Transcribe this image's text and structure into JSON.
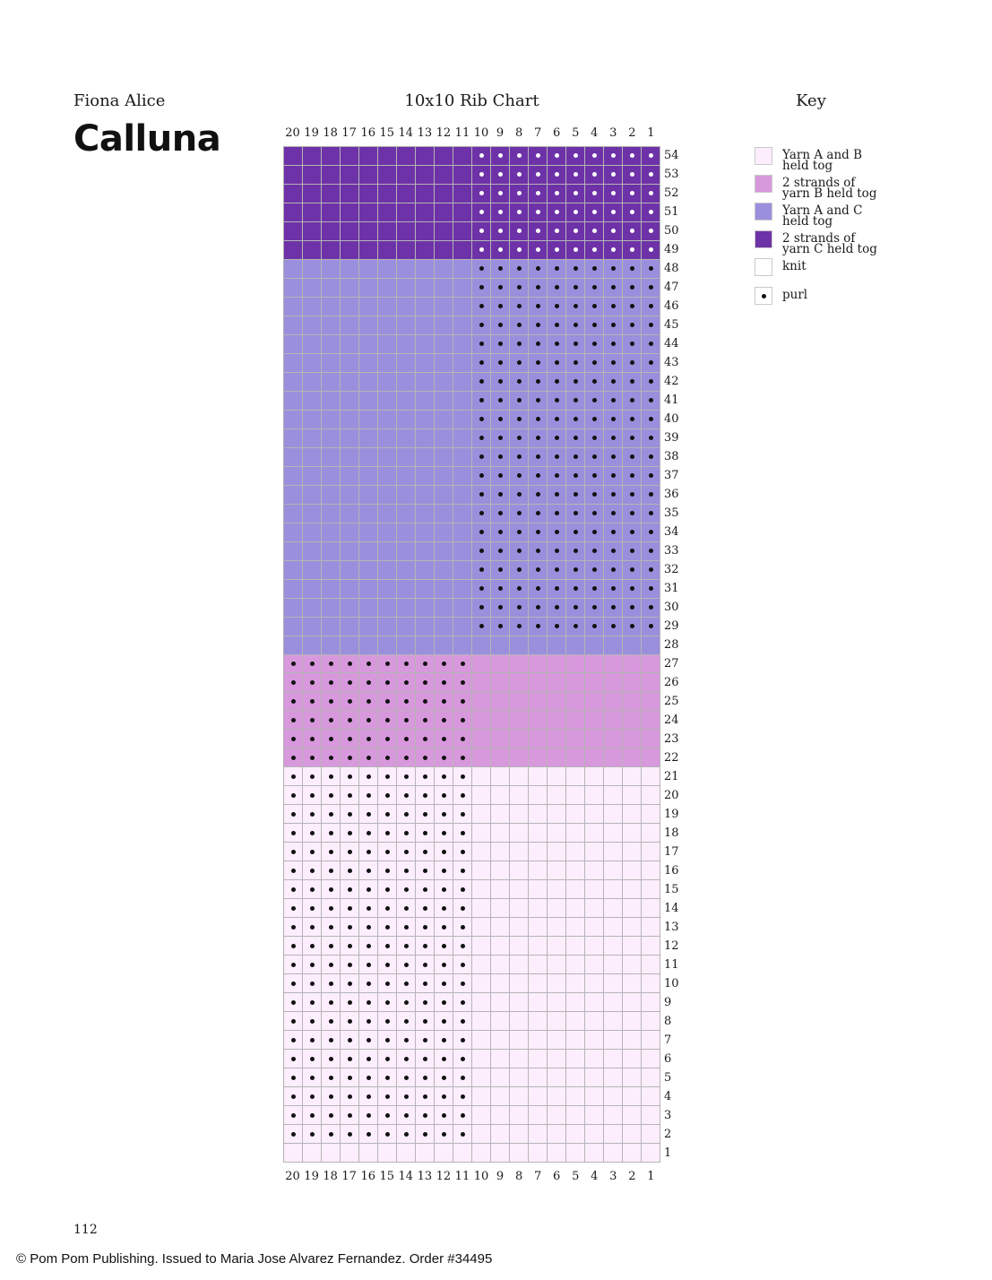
{
  "header": {
    "author": "Fiona Alice",
    "pattern_name": "Calluna",
    "chart_title": "10x10 Rib Chart",
    "key_title": "Key"
  },
  "chart": {
    "columns": [
      "20",
      "19",
      "18",
      "17",
      "16",
      "15",
      "14",
      "13",
      "12",
      "11",
      "10",
      "9",
      "8",
      "7",
      "6",
      "5",
      "4",
      "3",
      "2",
      "1"
    ],
    "rows": [
      "54",
      "53",
      "52",
      "51",
      "50",
      "49",
      "48",
      "47",
      "46",
      "45",
      "44",
      "43",
      "42",
      "41",
      "40",
      "39",
      "38",
      "37",
      "36",
      "35",
      "34",
      "33",
      "32",
      "31",
      "30",
      "29",
      "28",
      "27",
      "26",
      "25",
      "24",
      "23",
      "22",
      "21",
      "20",
      "19",
      "18",
      "17",
      "16",
      "15",
      "14",
      "13",
      "12",
      "11",
      "10",
      "9",
      "8",
      "7",
      "6",
      "5",
      "4",
      "3",
      "2",
      "1"
    ],
    "sections": [
      {
        "rows": "1-21",
        "color_key": "yarn_ab",
        "purl_stitches": "20-11",
        "purl_rows": "2-21"
      },
      {
        "rows": "22-27",
        "color_key": "yarn_bb",
        "purl_stitches": "20-11",
        "purl_rows": "22-27"
      },
      {
        "rows": "28-48",
        "color_key": "yarn_ac",
        "purl_stitches": "10-1",
        "purl_rows": "29-48"
      },
      {
        "rows": "49-54",
        "color_key": "yarn_cc",
        "purl_stitches": "10-1",
        "purl_rows": "49-54"
      }
    ],
    "colors": {
      "yarn_ab": "#fdeefd",
      "yarn_bb": "#d898dc",
      "yarn_ac": "#9a8fdc",
      "yarn_cc": "#6e32a8",
      "knit": "#ffffff",
      "grid": "#b5b5b5"
    }
  },
  "key": {
    "items": [
      {
        "label_line1": "Yarn A and B",
        "label_line2": "held tog",
        "color": "#fdeefd",
        "icon": "swatch"
      },
      {
        "label_line1": "2 strands of",
        "label_line2": "yarn B held tog",
        "color": "#d898dc",
        "icon": "swatch"
      },
      {
        "label_line1": "Yarn A and C",
        "label_line2": "held tog",
        "color": "#9a8fdc",
        "icon": "swatch"
      },
      {
        "label_line1": "2 strands of",
        "label_line2": "yarn C held tog",
        "color": "#6e32a8",
        "icon": "swatch"
      },
      {
        "label_line1": "knit",
        "label_line2": "",
        "color": "#ffffff",
        "icon": "swatch"
      },
      {
        "label_line1": "purl",
        "label_line2": "",
        "color": "#ffffff",
        "icon": "purl-dot"
      }
    ]
  },
  "footer": {
    "page_number": "112",
    "copyright": "© Pom Pom Publishing. Issued to Maria Jose Alvarez Fernandez. Order #34495"
  }
}
